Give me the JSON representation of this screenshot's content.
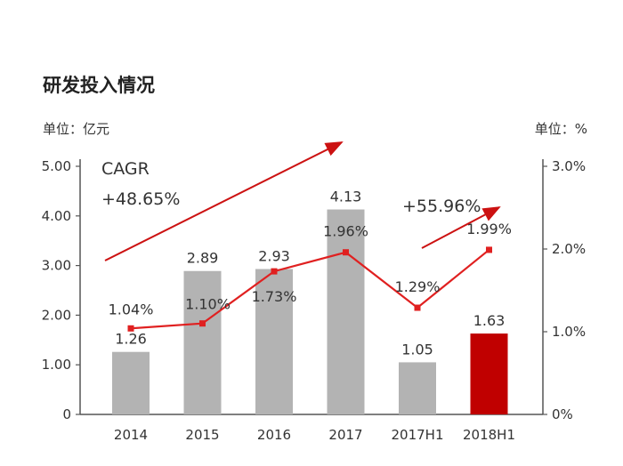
{
  "header": {
    "title": "研发投入情况",
    "unit_left": "单位：亿元",
    "unit_right": "单位：%"
  },
  "annotations": {
    "cagr_label": "CAGR",
    "cagr_value": "+48.65%",
    "growth_h1": "+55.96%"
  },
  "colors": {
    "bar": "#b3b3b3",
    "bar_highlight": "#c00000",
    "line": "#e02020",
    "arrow": "#cc1111",
    "axis": "#555555"
  },
  "chart_data": {
    "type": "bar",
    "categories": [
      "2014",
      "2015",
      "2016",
      "2017",
      "2017H1",
      "2018H1"
    ],
    "series": [
      {
        "type": "bar",
        "axis": "left",
        "values": [
          1.26,
          2.89,
          2.93,
          4.13,
          1.05,
          1.63
        ],
        "labels": [
          "1.26",
          "2.89",
          "2.93",
          "4.13",
          "1.05",
          "1.63"
        ],
        "highlight_index": 5
      },
      {
        "type": "line",
        "axis": "right",
        "values": [
          1.04,
          1.1,
          1.73,
          1.96,
          1.29,
          1.99
        ],
        "labels": [
          "1.04%",
          "1.10%",
          "1.73%",
          "1.96%",
          "1.29%",
          "1.99%"
        ]
      }
    ],
    "ylim_left": [
      0,
      5
    ],
    "ylim_right": [
      0,
      3
    ],
    "yticks_left": [
      "0",
      "1.00",
      "2.00",
      "3.00",
      "4.00",
      "5.00"
    ],
    "yticks_right": [
      "0%",
      "1.0%",
      "2.0%",
      "3.0%"
    ],
    "bar_label_values_note": "",
    "grid": false
  }
}
